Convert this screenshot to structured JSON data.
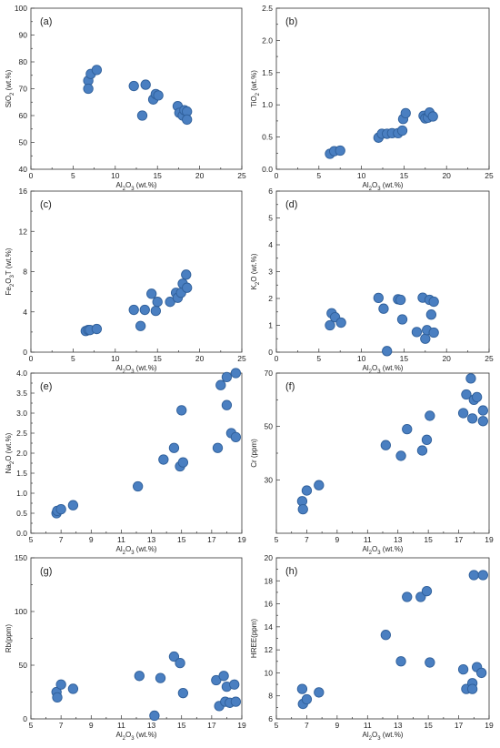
{
  "chart_data": [
    {
      "type": "scatter",
      "panel_label": "(a)",
      "xlabel": "Al2O3 (wt.%)",
      "ylabel": "SiO2 (wt.%)",
      "xlim": [
        0,
        25
      ],
      "ylim": [
        40,
        100
      ],
      "xticks": [
        0,
        5,
        10,
        15,
        20,
        25
      ],
      "yticks": [
        40,
        50,
        60,
        70,
        80,
        90,
        100
      ],
      "points": [
        [
          6.8,
          73
        ],
        [
          6.8,
          70
        ],
        [
          7.1,
          75.5
        ],
        [
          7.8,
          77
        ],
        [
          12.2,
          71
        ],
        [
          13.2,
          60
        ],
        [
          13.6,
          71.5
        ],
        [
          14.5,
          66
        ],
        [
          14.8,
          68
        ],
        [
          15.1,
          67.5
        ],
        [
          17.4,
          63.5
        ],
        [
          17.6,
          61
        ],
        [
          18.0,
          60
        ],
        [
          18.2,
          62
        ],
        [
          18.5,
          61.5
        ],
        [
          18.5,
          58.5
        ]
      ]
    },
    {
      "type": "scatter",
      "panel_label": "(b)",
      "xlabel": "Al2O3 (wt.%)",
      "ylabel": "TiO2 (wt.%)",
      "xlim": [
        0,
        25
      ],
      "ylim": [
        0,
        2.5
      ],
      "xticks": [
        0,
        5,
        10,
        15,
        20,
        25
      ],
      "yticks": [
        0,
        0.5,
        1.0,
        1.5,
        2.0,
        2.5
      ],
      "points": [
        [
          6.3,
          0.24
        ],
        [
          6.8,
          0.28
        ],
        [
          7.5,
          0.29
        ],
        [
          12.0,
          0.49
        ],
        [
          12.4,
          0.55
        ],
        [
          13.0,
          0.55
        ],
        [
          13.6,
          0.56
        ],
        [
          14.3,
          0.56
        ],
        [
          14.8,
          0.6
        ],
        [
          14.9,
          0.78
        ],
        [
          15.2,
          0.87
        ],
        [
          17.3,
          0.83
        ],
        [
          17.5,
          0.79
        ],
        [
          17.8,
          0.8
        ],
        [
          18.0,
          0.88
        ],
        [
          18.4,
          0.82
        ]
      ]
    },
    {
      "type": "scatter",
      "panel_label": "(c)",
      "xlabel": "Al2O3 (wt.%)",
      "ylabel": "Fe2O3T (wt.%)",
      "xlim": [
        0,
        25
      ],
      "ylim": [
        0,
        16
      ],
      "xticks": [
        0,
        5,
        10,
        15,
        20,
        25
      ],
      "yticks": [
        0,
        4,
        8,
        12,
        16
      ],
      "points": [
        [
          6.5,
          2.1
        ],
        [
          6.8,
          2.2
        ],
        [
          7.0,
          2.2
        ],
        [
          7.8,
          2.3
        ],
        [
          12.2,
          4.2
        ],
        [
          13.0,
          2.6
        ],
        [
          13.5,
          4.2
        ],
        [
          14.3,
          5.8
        ],
        [
          14.8,
          4.1
        ],
        [
          15.0,
          5.0
        ],
        [
          16.5,
          5.0
        ],
        [
          17.2,
          5.9
        ],
        [
          17.4,
          5.4
        ],
        [
          17.8,
          5.9
        ],
        [
          18.0,
          6.8
        ],
        [
          18.4,
          7.7
        ],
        [
          18.5,
          6.4
        ]
      ]
    },
    {
      "type": "scatter",
      "panel_label": "(d)",
      "xlabel": "Al2O3 (wt.%)",
      "ylabel": "K2O (wt.%)",
      "xlim": [
        0,
        25
      ],
      "ylim": [
        0,
        6
      ],
      "xticks": [
        0,
        5,
        10,
        15,
        20,
        25
      ],
      "yticks": [
        0,
        1,
        2,
        3,
        4,
        5,
        6
      ],
      "points": [
        [
          6.3,
          1.0
        ],
        [
          6.5,
          1.45
        ],
        [
          6.9,
          1.3
        ],
        [
          7.6,
          1.1
        ],
        [
          12.0,
          2.02
        ],
        [
          12.6,
          1.62
        ],
        [
          13.0,
          0.04
        ],
        [
          14.3,
          1.97
        ],
        [
          14.6,
          1.95
        ],
        [
          14.8,
          1.22
        ],
        [
          16.5,
          0.75
        ],
        [
          17.2,
          2.03
        ],
        [
          17.5,
          0.5
        ],
        [
          17.7,
          0.82
        ],
        [
          18.0,
          1.95
        ],
        [
          18.2,
          1.4
        ],
        [
          18.5,
          1.88
        ],
        [
          18.5,
          0.73
        ]
      ]
    },
    {
      "type": "scatter",
      "panel_label": "(e)",
      "xlabel": "Al2O3 (wt.%)",
      "ylabel": "Na2O (wt.%)",
      "xlim": [
        5,
        19
      ],
      "ylim": [
        0,
        4
      ],
      "xticks": [
        5.0,
        7.0,
        9.0,
        11.0,
        13.0,
        15.0,
        17.0,
        19.0
      ],
      "yticks": [
        0,
        0.5,
        1.0,
        1.5,
        2.0,
        2.5,
        3.0,
        3.5,
        4.0
      ],
      "points": [
        [
          6.7,
          0.5
        ],
        [
          6.75,
          0.56
        ],
        [
          7.0,
          0.6
        ],
        [
          7.8,
          0.7
        ],
        [
          12.1,
          1.17
        ],
        [
          13.8,
          1.84
        ],
        [
          14.5,
          2.13
        ],
        [
          14.9,
          1.67
        ],
        [
          15.0,
          3.07
        ],
        [
          15.1,
          1.77
        ],
        [
          17.4,
          2.13
        ],
        [
          17.6,
          3.7
        ],
        [
          18.0,
          3.9
        ],
        [
          18.0,
          3.2
        ],
        [
          18.3,
          2.5
        ],
        [
          18.6,
          2.4
        ],
        [
          18.6,
          4.0
        ]
      ]
    },
    {
      "type": "scatter",
      "panel_label": "(f)",
      "xlabel": "Al2O3 (wt.%)",
      "ylabel": "Cr (ppm)",
      "xlim": [
        5,
        19
      ],
      "ylim": [
        10,
        70
      ],
      "xticks": [
        5.0,
        7.0,
        9.0,
        11.0,
        13.0,
        15.0,
        17.0,
        19.0
      ],
      "yticks": [
        30,
        50,
        70
      ],
      "points": [
        [
          6.7,
          22
        ],
        [
          6.75,
          19
        ],
        [
          7.0,
          26
        ],
        [
          7.8,
          28
        ],
        [
          12.2,
          43
        ],
        [
          13.2,
          39
        ],
        [
          13.6,
          49
        ],
        [
          14.6,
          41
        ],
        [
          14.9,
          45
        ],
        [
          15.1,
          54
        ],
        [
          17.3,
          55
        ],
        [
          17.5,
          62
        ],
        [
          17.8,
          68
        ],
        [
          17.9,
          53
        ],
        [
          18.0,
          60
        ],
        [
          18.2,
          61
        ],
        [
          18.6,
          56
        ],
        [
          18.6,
          52
        ]
      ]
    },
    {
      "type": "scatter",
      "panel_label": "(g)",
      "xlabel": "Al2O3 (wt.%)",
      "ylabel": "Rb(ppm)",
      "xlim": [
        5,
        19
      ],
      "ylim": [
        0,
        150
      ],
      "xticks": [
        5.0,
        7.0,
        9.0,
        11.0,
        13.0,
        15.0,
        17.0,
        19.0
      ],
      "yticks": [
        0,
        50,
        100,
        150
      ],
      "points": [
        [
          6.7,
          25
        ],
        [
          6.75,
          20
        ],
        [
          7.0,
          32
        ],
        [
          7.8,
          28
        ],
        [
          12.2,
          40
        ],
        [
          13.2,
          3
        ],
        [
          13.6,
          38
        ],
        [
          14.5,
          58
        ],
        [
          14.9,
          52
        ],
        [
          15.1,
          24
        ],
        [
          17.3,
          36
        ],
        [
          17.5,
          12
        ],
        [
          17.8,
          40
        ],
        [
          17.9,
          16
        ],
        [
          18.0,
          30
        ],
        [
          18.2,
          15
        ],
        [
          18.5,
          32
        ],
        [
          18.6,
          16
        ]
      ]
    },
    {
      "type": "scatter",
      "panel_label": "(h)",
      "xlabel": "Al2O3 (wt.%)",
      "ylabel": "HREE(ppm)",
      "xlim": [
        5,
        19
      ],
      "ylim": [
        6,
        20
      ],
      "xticks": [
        5.0,
        7.0,
        9.0,
        11.0,
        13.0,
        15.0,
        17.0,
        19.0
      ],
      "yticks": [
        6,
        8,
        10,
        12,
        14,
        16,
        18,
        20
      ],
      "points": [
        [
          6.7,
          8.6
        ],
        [
          6.75,
          7.3
        ],
        [
          7.0,
          7.7
        ],
        [
          7.8,
          8.3
        ],
        [
          12.2,
          13.3
        ],
        [
          13.2,
          11.0
        ],
        [
          13.6,
          16.6
        ],
        [
          14.5,
          16.6
        ],
        [
          14.9,
          17.1
        ],
        [
          15.1,
          10.9
        ],
        [
          17.3,
          10.3
        ],
        [
          17.5,
          8.6
        ],
        [
          17.9,
          9.1
        ],
        [
          17.9,
          8.6
        ],
        [
          18.0,
          18.5
        ],
        [
          18.2,
          10.5
        ],
        [
          18.5,
          10.0
        ],
        [
          18.6,
          18.5
        ]
      ]
    }
  ]
}
